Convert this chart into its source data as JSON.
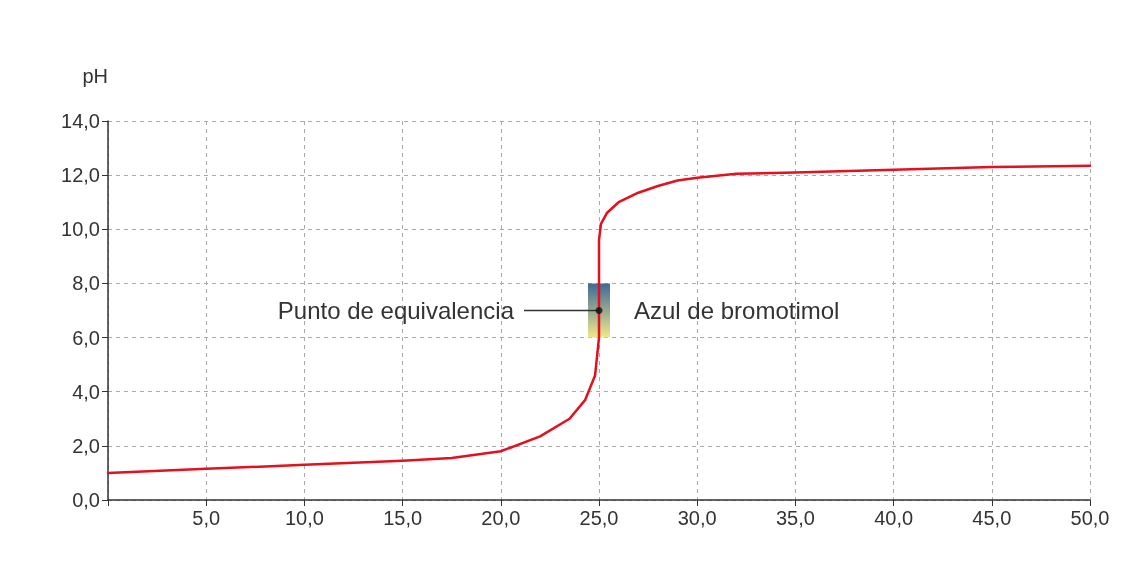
{
  "chart_data": {
    "type": "line",
    "ylabel": "pH",
    "series": [
      {
        "color": "#e3101e",
        "x": [
          0,
          5,
          10,
          15,
          17.5,
          20,
          22,
          23.5,
          24.3,
          24.8,
          25,
          25,
          25.1,
          25.4,
          26,
          27,
          28,
          29,
          30,
          32,
          35,
          40,
          45,
          50
        ],
        "values": [
          1.0,
          1.15,
          1.3,
          1.45,
          1.55,
          1.8,
          2.35,
          3.0,
          3.7,
          4.6,
          6.0,
          9.6,
          10.2,
          10.6,
          11.0,
          11.35,
          11.6,
          11.8,
          11.9,
          12.05,
          12.1,
          12.2,
          12.3,
          12.35
        ]
      },
      {
        "type": "scatter",
        "color": "#111111",
        "x": [
          25
        ],
        "values": [
          7.0
        ]
      }
    ],
    "annotations": [
      "Punto de equivalencia",
      {
        "text": "Azul de bromotimol",
        "x": 25,
        "y": 7
      }
    ],
    "xlim": [
      0,
      50
    ],
    "xticks": [
      {
        "value": 0,
        "label": null
      },
      {
        "value": 5,
        "label": "5,0"
      },
      {
        "value": 10,
        "label": "10,0"
      },
      {
        "value": 15,
        "label": "15,0"
      },
      {
        "value": 20,
        "label": "20,0"
      },
      {
        "value": 25,
        "label": "25,0"
      },
      {
        "value": 30,
        "label": "30,0"
      },
      {
        "value": 35,
        "label": "35,0"
      },
      {
        "value": 40,
        "label": "40,0"
      },
      {
        "value": 45,
        "label": "45,0"
      },
      {
        "value": 50,
        "label": "50,0"
      }
    ],
    "ylim": [
      0,
      14
    ],
    "yticks": [
      {
        "value": 0,
        "label": "0,0"
      },
      {
        "value": 2,
        "label": "2,0"
      },
      {
        "value": 4,
        "label": "4,0"
      },
      {
        "value": 6,
        "label": "6,0"
      },
      {
        "value": 8,
        "label": "8,0"
      },
      {
        "value": 10,
        "label": "10,0"
      },
      {
        "value": 12,
        "label": "12,0"
      },
      {
        "value": 14,
        "label": "14,0"
      }
    ],
    "grid": true
  }
}
